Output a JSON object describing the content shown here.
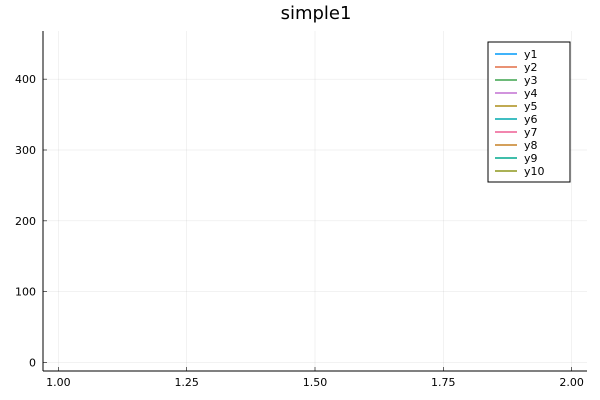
{
  "chart_data": {
    "type": "line",
    "title": "simple1",
    "xlabel": "",
    "ylabel": "",
    "xlim": [
      0.97,
      2.03
    ],
    "ylim": [
      -12,
      468
    ],
    "xticks": [
      1.0,
      1.25,
      1.5,
      1.75,
      2.0
    ],
    "xtick_labels": [
      "1.00",
      "1.25",
      "1.50",
      "1.75",
      "2.00"
    ],
    "yticks": [
      0,
      100,
      200,
      300,
      400
    ],
    "ytick_labels": [
      "0",
      "100",
      "200",
      "300",
      "400"
    ],
    "grid": true,
    "legend_position": "top-right",
    "series": [
      {
        "name": "y1",
        "color": "#009af9",
        "x": [],
        "y": []
      },
      {
        "name": "y2",
        "color": "#e26f46",
        "x": [],
        "y": []
      },
      {
        "name": "y3",
        "color": "#3da44d",
        "x": [],
        "y": []
      },
      {
        "name": "y4",
        "color": "#c271d2",
        "x": [],
        "y": []
      },
      {
        "name": "y5",
        "color": "#ac8e18",
        "x": [],
        "y": []
      },
      {
        "name": "y6",
        "color": "#00a9ad",
        "x": [],
        "y": []
      },
      {
        "name": "y7",
        "color": "#ed5e93",
        "x": [],
        "y": []
      },
      {
        "name": "y8",
        "color": "#c68125",
        "x": [],
        "y": []
      },
      {
        "name": "y9",
        "color": "#00a98d",
        "x": [],
        "y": []
      },
      {
        "name": "y10",
        "color": "#8e971d",
        "x": [],
        "y": []
      }
    ]
  }
}
